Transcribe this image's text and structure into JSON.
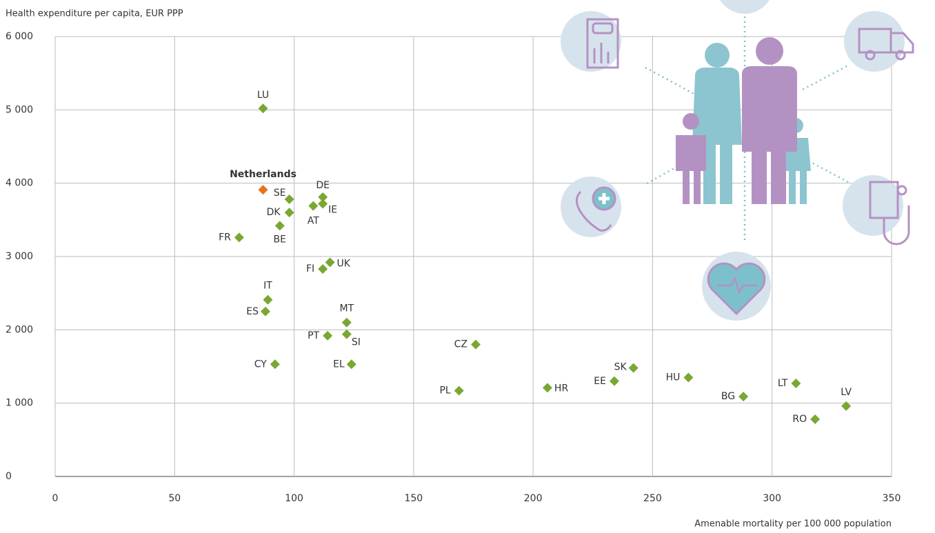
{
  "chart_data": {
    "type": "scatter",
    "ylabel": "Health expenditure per capita, EUR PPP",
    "xlabel": "Amenable mortality per 100 000 population",
    "xlim": [
      0,
      350
    ],
    "xticks": [
      0,
      50,
      100,
      150,
      200,
      250,
      300,
      350
    ],
    "ylim": [
      0,
      6000
    ],
    "yticks": [
      0,
      {
        "value": 1000,
        "label": "1 000"
      },
      {
        "value": 2000,
        "label": "2 000"
      },
      {
        "value": 3000,
        "label": "3 000"
      },
      {
        "value": 4000,
        "label": "4 000"
      },
      {
        "value": 5000,
        "label": "5 000"
      },
      {
        "value": 6000,
        "label": "6 000"
      }
    ],
    "grid": true,
    "series": [
      {
        "color": "#7aa733",
        "labels": [
          "LU",
          "SE",
          "DE",
          "IE",
          "AT",
          "DK",
          "BE",
          "FR",
          "UK",
          "FI",
          "IT",
          "ES",
          "MT",
          "PT",
          "SI",
          "CY",
          "EL",
          "CZ",
          "PL",
          "HR",
          "EE",
          "SK",
          "HU",
          "LT",
          "BG",
          "LV",
          "RO"
        ],
        "x": [
          87,
          98,
          112,
          112,
          108,
          98,
          94,
          77,
          115,
          112,
          89,
          88,
          122,
          114,
          122,
          92,
          124,
          176,
          169,
          206,
          234,
          242,
          265,
          310,
          288,
          331,
          318
        ],
        "values": [
          5020,
          3780,
          3810,
          3720,
          3690,
          3600,
          3420,
          3260,
          2920,
          2830,
          2410,
          2250,
          2100,
          1920,
          1940,
          1530,
          1530,
          1800,
          1170,
          1210,
          1300,
          1480,
          1350,
          1270,
          1090,
          960,
          780
        ]
      },
      {
        "color": "#e8731a",
        "labels": [
          "Netherlands"
        ],
        "x": [
          87
        ],
        "values": [
          3910
        ]
      }
    ]
  }
}
